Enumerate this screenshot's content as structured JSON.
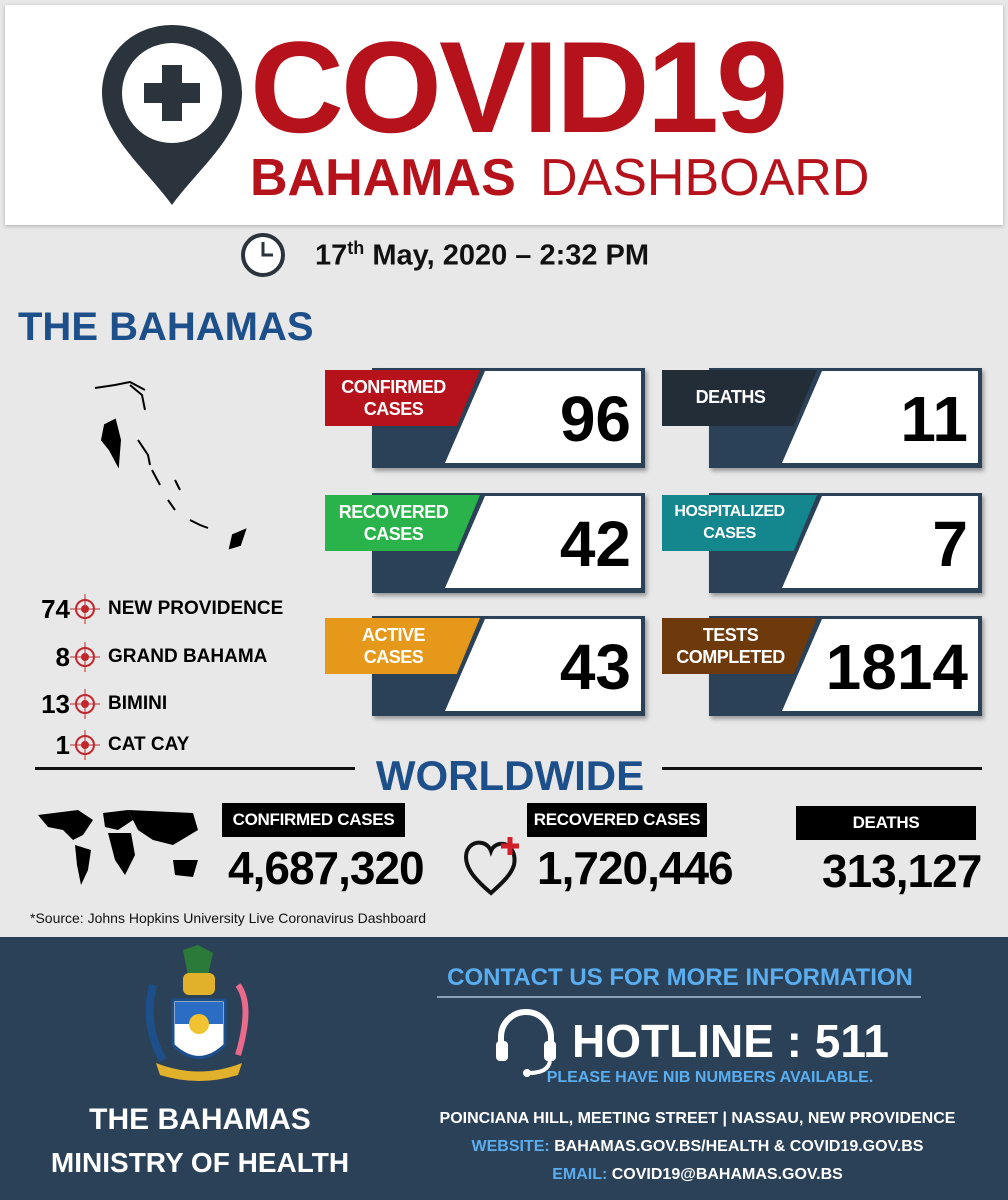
{
  "header": {
    "title": "COVID19",
    "subtitle_bold": "BAHAMAS",
    "subtitle_light": "DASHBOARD"
  },
  "timestamp": {
    "day": "17",
    "suffix": "th",
    "rest": " May, 2020 – 2:32 PM"
  },
  "bahamas": {
    "title": "THE BAHAMAS",
    "cards": [
      {
        "label1": "CONFIRMED",
        "label2": "CASES",
        "value": "96",
        "color": "#b5121b"
      },
      {
        "label1": "DEATHS",
        "label2": "",
        "value": "11",
        "color": "#222d38"
      },
      {
        "label1": "RECOVERED",
        "label2": "CASES",
        "value": "42",
        "color": "#2ab34a"
      },
      {
        "label1": "HOSPITALIZED",
        "label2": "CASES",
        "value": "7",
        "color": "#13868e"
      },
      {
        "label1": "ACTIVE",
        "label2": "CASES",
        "value": "43",
        "color": "#e5981a"
      },
      {
        "label1": "TESTS",
        "label2": "COMPLETED",
        "value": "1814",
        "color": "#6e3a0c"
      }
    ],
    "islands": [
      {
        "count": "74",
        "name": "NEW PROVIDENCE"
      },
      {
        "count": "8",
        "name": "GRAND BAHAMA"
      },
      {
        "count": "13",
        "name": "BIMINI"
      },
      {
        "count": "1",
        "name": "CAT CAY"
      }
    ]
  },
  "worldwide": {
    "title": "WORLDWIDE",
    "confirmed_label": "CONFIRMED CASES",
    "confirmed": "4,687,320",
    "recovered_label": "RECOVERED CASES",
    "recovered": "1,720,446",
    "deaths_label": "DEATHS",
    "deaths": "313,127",
    "source": "*Source: Johns Hopkins University Live Coronavirus Dashboard"
  },
  "footer": {
    "ministry1": "THE BAHAMAS",
    "ministry2": "MINISTRY OF HEALTH",
    "contact": "CONTACT US FOR MORE INFORMATION",
    "hotline": "HOTLINE : 511",
    "nib": "PLEASE HAVE NIB NUMBERS AVAILABLE.",
    "address": "POINCIANA HILL, MEETING STREET  |  NASSAU, NEW PROVIDENCE",
    "website_label": "WEBSITE:",
    "website": " BAHAMAS.GOV.BS/HEALTH  &  COVID19.GOV.BS",
    "email_label": "EMAIL:",
    "email": " COVID19@BAHAMAS.GOV.BS"
  },
  "colors": {
    "red": "#b5121b",
    "navy": "#2b4158",
    "blue": "#1d4f8a",
    "light_blue": "#5aaef0"
  }
}
